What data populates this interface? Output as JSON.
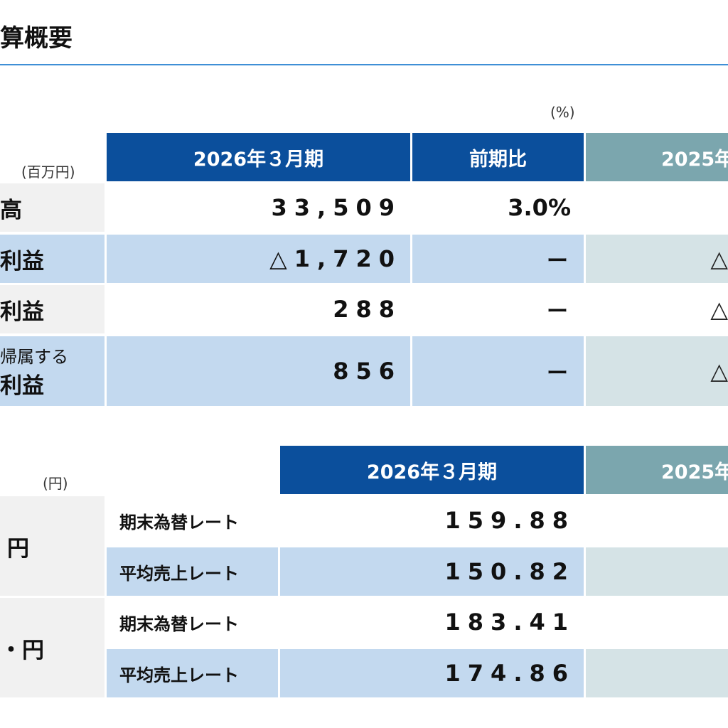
{
  "page": {
    "title": "算概要"
  },
  "table1": {
    "unit": "(百万円)",
    "percent_unit": "(%)",
    "headers": {
      "period": "2026年３月期",
      "yoy": "前期比",
      "prev": "2025年"
    },
    "rows": [
      {
        "label": "高",
        "value": "33,509",
        "yoy": "3.0%",
        "prev": ""
      },
      {
        "label": "利益",
        "value": "△1,720",
        "yoy": "ー",
        "prev": "△"
      },
      {
        "label": "利益",
        "value": "288",
        "yoy": "ー",
        "prev": "△"
      },
      {
        "label_line1": "帰属する",
        "label_line2": "利益",
        "value": "856",
        "yoy": "ー",
        "prev": "△"
      }
    ]
  },
  "table2": {
    "unit": "(円)",
    "headers": {
      "period": "2026年３月期",
      "prev": "2025年"
    },
    "groups": [
      {
        "currency": "円",
        "rows": [
          {
            "label": "期末為替レート",
            "value": "159.88"
          },
          {
            "label": "平均売上レート",
            "value": "150.82"
          }
        ]
      },
      {
        "currency": "・円",
        "rows": [
          {
            "label": "期末為替レート",
            "value": "183.41"
          },
          {
            "label": "平均売上レート",
            "value": "174.86"
          }
        ]
      }
    ]
  }
}
